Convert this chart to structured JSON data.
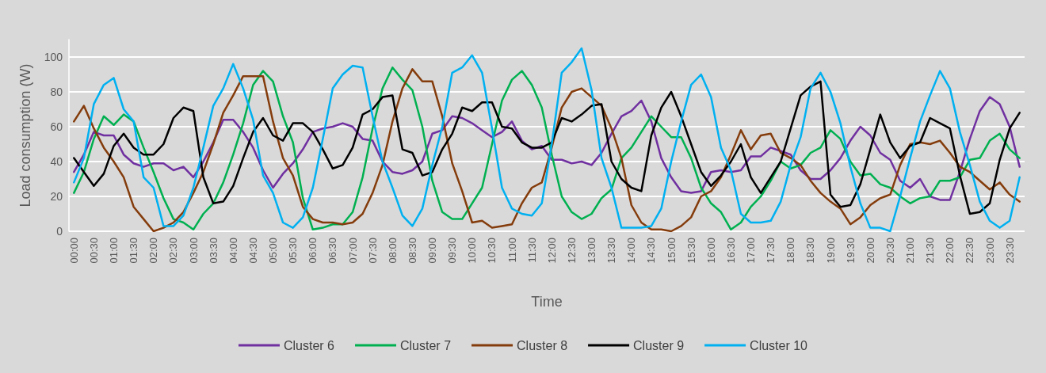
{
  "chart_data": {
    "type": "line",
    "xlabel": "Time",
    "ylabel": "Load consumption (W)",
    "categories": [
      "00:00",
      null,
      "00:30",
      null,
      "01:00",
      null,
      "01:30",
      null,
      "02:00",
      null,
      "02:30",
      null,
      "03:00",
      null,
      "03:30",
      null,
      "04:00",
      null,
      "04:30",
      null,
      "05:00",
      null,
      "05:30",
      null,
      "06:00",
      null,
      "06:30",
      null,
      "07:00",
      null,
      "07:30",
      null,
      "08:00",
      null,
      "08:30",
      null,
      "09:00",
      null,
      "09:30",
      null,
      "10:00",
      null,
      "10:30",
      null,
      "11:00",
      null,
      "11:30",
      null,
      "12:00",
      null,
      "12:30",
      null,
      "13:00",
      null,
      "13:30",
      null,
      "14:00",
      null,
      "14:30",
      null,
      "15:00",
      null,
      "15:30",
      null,
      "16:00",
      null,
      "16:30",
      null,
      "17:00",
      null,
      "17:30",
      null,
      "18:00",
      null,
      "18:30",
      null,
      "19:00",
      null,
      "19:30",
      null,
      "20:00",
      null,
      "20:30",
      null,
      "21:00",
      null,
      "21:30",
      null,
      "22:00",
      null,
      "22:30",
      null,
      "23:00",
      null,
      "23:30",
      null
    ],
    "series": [
      {
        "name": "Cluster 6",
        "color": "#7030a0",
        "values": [
          34,
          44,
          57,
          55,
          55,
          44,
          39,
          37,
          39,
          39,
          35,
          37,
          31,
          40,
          51,
          64,
          64,
          57,
          48,
          35,
          25,
          33,
          39,
          47,
          57,
          59,
          60,
          62,
          60,
          53,
          52,
          40,
          34,
          33,
          35,
          40,
          56,
          58,
          66,
          65,
          62,
          58,
          54,
          57,
          63,
          52,
          47,
          49,
          41,
          41,
          39,
          40,
          38,
          45,
          56,
          66,
          69,
          75,
          63,
          42,
          31,
          23,
          22,
          23,
          34,
          35,
          34,
          35,
          43,
          43,
          48,
          46,
          44,
          35,
          30,
          30,
          35,
          42,
          52,
          60,
          55,
          45,
          41,
          29,
          25,
          30,
          20,
          18,
          18,
          34,
          53,
          69,
          77,
          73,
          60,
          37
        ]
      },
      {
        "name": "Cluster 7",
        "color": "#00b050",
        "values": [
          22,
          34,
          53,
          66,
          61,
          67,
          63,
          48,
          34,
          19,
          7,
          5,
          1,
          10,
          16,
          28,
          44,
          62,
          84,
          92,
          86,
          66,
          51,
          19,
          1,
          2,
          4,
          4,
          11,
          31,
          59,
          82,
          94,
          87,
          81,
          60,
          29,
          11,
          7,
          7,
          16,
          25,
          50,
          75,
          87,
          92,
          84,
          71,
          44,
          20,
          11,
          7,
          10,
          19,
          24,
          42,
          48,
          57,
          66,
          60,
          54,
          54,
          42,
          25,
          16,
          11,
          1,
          5,
          14,
          20,
          29,
          40,
          36,
          38,
          45,
          48,
          58,
          53,
          40,
          32,
          33,
          27,
          25,
          20,
          16,
          19,
          20,
          29,
          29,
          31,
          41,
          42,
          52,
          56,
          47,
          42
        ]
      },
      {
        "name": "Cluster 8",
        "color": "#843c0c",
        "values": [
          63,
          72,
          59,
          48,
          40,
          31,
          14,
          7,
          0,
          2,
          5,
          11,
          22,
          34,
          50,
          68,
          78,
          89,
          89,
          89,
          63,
          42,
          32,
          14,
          7,
          5,
          5,
          4,
          5,
          10,
          22,
          38,
          63,
          82,
          93,
          86,
          86,
          66,
          39,
          23,
          5,
          6,
          2,
          3,
          4,
          16,
          25,
          28,
          48,
          71,
          80,
          82,
          77,
          72,
          59,
          42,
          15,
          5,
          1,
          1,
          0,
          3,
          8,
          20,
          23,
          31,
          44,
          58,
          47,
          55,
          56,
          45,
          42,
          38,
          29,
          22,
          17,
          13,
          4,
          8,
          15,
          19,
          21,
          38,
          50,
          51,
          50,
          52,
          45,
          37,
          34,
          29,
          24,
          28,
          21,
          17
        ]
      },
      {
        "name": "Cluster 9",
        "color": "#000000",
        "values": [
          42,
          34,
          26,
          33,
          49,
          56,
          48,
          44,
          44,
          50,
          65,
          71,
          69,
          31,
          16,
          17,
          26,
          42,
          57,
          65,
          55,
          52,
          62,
          62,
          57,
          47,
          36,
          38,
          48,
          67,
          70,
          77,
          78,
          47,
          45,
          32,
          34,
          47,
          56,
          71,
          69,
          74,
          74,
          60,
          59,
          51,
          48,
          48,
          51,
          65,
          63,
          67,
          72,
          73,
          40,
          30,
          25,
          23,
          55,
          71,
          80,
          66,
          50,
          34,
          26,
          32,
          40,
          50,
          31,
          22,
          31,
          40,
          59,
          78,
          83,
          86,
          21,
          14,
          15,
          27,
          47,
          67,
          51,
          42,
          49,
          51,
          65,
          62,
          59,
          32,
          10,
          11,
          16,
          41,
          59,
          68
        ]
      },
      {
        "name": "Cluster 10",
        "color": "#00b0f0",
        "values": [
          28,
          42,
          73,
          84,
          88,
          70,
          63,
          31,
          25,
          3,
          3,
          9,
          25,
          48,
          72,
          82,
          96,
          82,
          64,
          32,
          22,
          5,
          2,
          8,
          25,
          53,
          82,
          90,
          95,
          94,
          66,
          40,
          25,
          9,
          3,
          13,
          38,
          60,
          91,
          94,
          101,
          91,
          59,
          25,
          13,
          10,
          9,
          16,
          50,
          91,
          97,
          105,
          81,
          42,
          25,
          2,
          2,
          2,
          3,
          13,
          40,
          63,
          84,
          90,
          77,
          48,
          35,
          10,
          5,
          5,
          6,
          17,
          38,
          54,
          82,
          91,
          80,
          62,
          37,
          16,
          2,
          2,
          0,
          20,
          42,
          63,
          78,
          92,
          82,
          57,
          38,
          17,
          6,
          2,
          6,
          31
        ]
      }
    ],
    "ylim": [
      0,
      110
    ],
    "yticks": [
      0,
      20,
      40,
      60,
      80,
      100
    ],
    "grid": "y",
    "legend": "bottom",
    "marker": "none",
    "line_style": "solid"
  }
}
